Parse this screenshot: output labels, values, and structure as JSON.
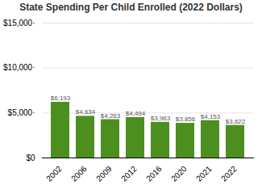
{
  "chart_data": {
    "type": "bar",
    "title": "State Spending Per Child Enrolled (2022 Dollars)",
    "categories": [
      "2002",
      "2006",
      "2009",
      "2012",
      "2016",
      "2020",
      "2021",
      "2022"
    ],
    "values": [
      6193,
      4634,
      4263,
      4494,
      3963,
      3856,
      4153,
      3622
    ],
    "value_labels": [
      "$6,193",
      "$4,634",
      "$4,263",
      "$4,494",
      "$3,963",
      "$3,856",
      "$4,153",
      "$3,622"
    ],
    "data_labels": true,
    "color": "#4d8f1f",
    "ylim": [
      0,
      15000
    ],
    "yticks": [
      {
        "value": 0,
        "label": "$0"
      },
      {
        "value": 5000,
        "label": "$5,000·"
      },
      {
        "value": 10000,
        "label": "$10,000·"
      },
      {
        "value": 15000,
        "label": "$15,000·"
      }
    ],
    "grid": true
  }
}
